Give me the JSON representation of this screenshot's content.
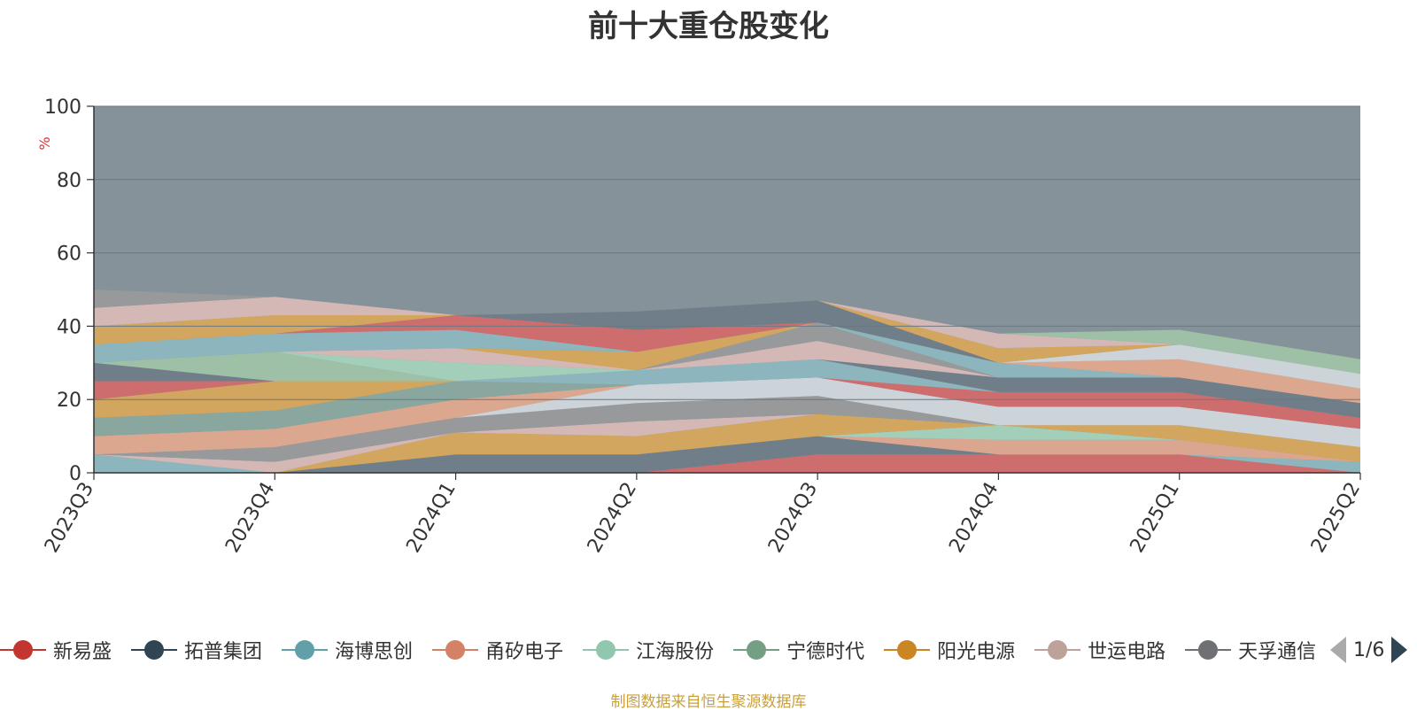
{
  "title": "前十大重仓股变化",
  "source_note": "制图数据来自恒生聚源数据库",
  "pager_text": "1/6",
  "chart_data": {
    "type": "area",
    "title": "前十大重仓股变化",
    "xlabel": "",
    "ylabel": "%",
    "ylim": [
      0,
      100
    ],
    "yticks": [
      0,
      20,
      40,
      60,
      80,
      100
    ],
    "grid": true,
    "stacked": true,
    "legend_position": "bottom",
    "background_color": "#85929a",
    "categories": [
      "2023Q3",
      "2023Q4",
      "2024Q1",
      "2024Q2",
      "2024Q3",
      "2024Q4",
      "2025Q1",
      "2025Q2"
    ],
    "series": [
      {
        "name": "新易盛",
        "color": "#d46a6a",
        "values": [
          0,
          0,
          0,
          0,
          5,
          5,
          5,
          0
        ]
      },
      {
        "name": "拓普集团",
        "color": "#6f7d88",
        "values": [
          0,
          0,
          5,
          5,
          5,
          0,
          0,
          0
        ]
      },
      {
        "name": "海博思创",
        "color": "#8db8c0",
        "values": [
          5,
          0,
          0,
          0,
          0,
          0,
          0,
          3
        ]
      },
      {
        "name": "甬矽电子",
        "color": "#e3a88f",
        "values": [
          0,
          0,
          0,
          0,
          0,
          4,
          4,
          0
        ]
      },
      {
        "name": "江海股份",
        "color": "#a6d4bd",
        "values": [
          0,
          0,
          0,
          0,
          0,
          4,
          0,
          0
        ]
      },
      {
        "name": "宁德时代",
        "color": "#9fc4a8",
        "values": [
          0,
          0,
          0,
          0,
          0,
          0,
          0,
          0
        ]
      },
      {
        "name": "阳光电源",
        "color": "#d9a85a",
        "values": [
          0,
          0,
          6,
          5,
          6,
          0,
          4,
          4
        ]
      },
      {
        "name": "世运电路",
        "color": "#dbbcb7",
        "values": [
          0,
          3,
          0,
          4,
          0,
          0,
          0,
          0
        ]
      },
      {
        "name": "天孚通信",
        "color": "#9a9a9a",
        "values": [
          0,
          4,
          4,
          5,
          5,
          0,
          0,
          0
        ]
      },
      {
        "name": "",
        "color": "#d3d9de",
        "values": [
          0,
          0,
          0,
          5,
          5,
          5,
          5,
          5
        ]
      },
      {
        "name": "",
        "color": "#e4a98e",
        "values": [
          5,
          5,
          5,
          0,
          0,
          0,
          0,
          0
        ]
      },
      {
        "name": "",
        "color": "#8aa9a0",
        "values": [
          5,
          5,
          5,
          0,
          0,
          0,
          0,
          0
        ]
      },
      {
        "name": "",
        "color": "#d9a85a",
        "values": [
          5,
          8,
          0,
          0,
          0,
          0,
          0,
          0
        ]
      },
      {
        "name": "",
        "color": "#d46a6a",
        "values": [
          5,
          0,
          0,
          0,
          0,
          4,
          4,
          3
        ]
      },
      {
        "name": "",
        "color": "#8db8c0",
        "values": [
          0,
          0,
          0,
          4,
          5,
          0,
          0,
          0
        ]
      },
      {
        "name": "",
        "color": "#6f7d88",
        "values": [
          5,
          0,
          0,
          0,
          0,
          4,
          4,
          4
        ]
      },
      {
        "name": "",
        "color": "#9fc4a8",
        "values": [
          0,
          8,
          0,
          0,
          0,
          0,
          0,
          0
        ]
      },
      {
        "name": "",
        "color": "#a6d4bd",
        "values": [
          0,
          0,
          5,
          0,
          0,
          0,
          0,
          0
        ]
      },
      {
        "name": "",
        "color": "#dbbcb7",
        "values": [
          0,
          0,
          4,
          0,
          5,
          0,
          0,
          0
        ]
      },
      {
        "name": "",
        "color": "#9a9a9a",
        "values": [
          0,
          0,
          0,
          0,
          5,
          0,
          0,
          0
        ]
      },
      {
        "name": "",
        "color": "#d9a85a",
        "values": [
          0,
          0,
          0,
          5,
          0,
          0,
          0,
          0
        ]
      },
      {
        "name": "",
        "color": "#8db8c0",
        "values": [
          5,
          5,
          5,
          0,
          0,
          4,
          0,
          0
        ]
      },
      {
        "name": "",
        "color": "#d46a6a",
        "values": [
          0,
          0,
          4,
          6,
          0,
          0,
          0,
          0
        ]
      },
      {
        "name": "",
        "color": "#6f7d88",
        "values": [
          0,
          0,
          0,
          5,
          6,
          0,
          0,
          0
        ]
      },
      {
        "name": "",
        "color": "#e4a98e",
        "values": [
          0,
          0,
          0,
          0,
          0,
          0,
          5,
          4
        ]
      },
      {
        "name": "",
        "color": "#d3d9de",
        "values": [
          0,
          0,
          0,
          0,
          0,
          0,
          4,
          4
        ]
      },
      {
        "name": "",
        "color": "#d9a85a",
        "values": [
          5,
          5,
          0,
          0,
          0,
          4,
          0,
          0
        ]
      },
      {
        "name": "",
        "color": "#dbbcb7",
        "values": [
          5,
          5,
          0,
          0,
          0,
          4,
          0,
          0
        ]
      },
      {
        "name": "",
        "color": "#9a9a9a",
        "values": [
          5,
          0,
          0,
          0,
          0,
          0,
          0,
          0
        ]
      },
      {
        "name": "",
        "color": "#9fc4a8",
        "values": [
          0,
          0,
          0,
          0,
          0,
          0,
          4,
          4
        ]
      }
    ]
  },
  "legend": {
    "items": [
      {
        "label": "新易盛",
        "color": "#c23531"
      },
      {
        "label": "拓普集团",
        "color": "#2f4554"
      },
      {
        "label": "海博思创",
        "color": "#61a0a8"
      },
      {
        "label": "甬矽电子",
        "color": "#d48265"
      },
      {
        "label": "江海股份",
        "color": "#91c7ae"
      },
      {
        "label": "宁德时代",
        "color": "#749f83"
      },
      {
        "label": "阳光电源",
        "color": "#ca8622"
      },
      {
        "label": "世运电路",
        "color": "#bda29a"
      },
      {
        "label": "天孚通信",
        "color": "#6e7074"
      }
    ]
  }
}
